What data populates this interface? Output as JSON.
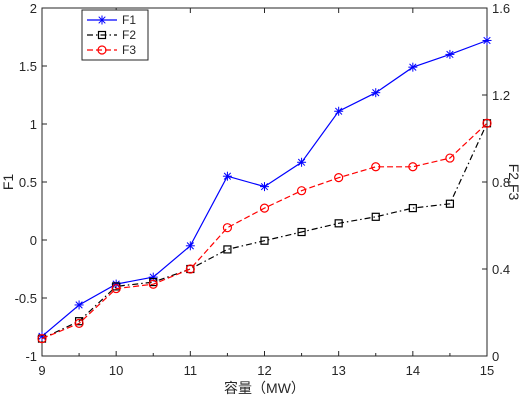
{
  "chart_data": {
    "type": "line",
    "xlabel": "容量（MW）",
    "ylabel_left": "F1",
    "ylabel_right": "F2,F3",
    "x": [
      9,
      9.5,
      10,
      10.5,
      11,
      11.5,
      12,
      12.5,
      13,
      13.5,
      14,
      14.5,
      15
    ],
    "xlim": [
      9,
      15
    ],
    "ylim_left": [
      -1,
      2
    ],
    "ylim_right": [
      0,
      1.6
    ],
    "xticks": [
      "9",
      "10",
      "11",
      "12",
      "13",
      "14",
      "15"
    ],
    "yticks_left": [
      "-1",
      "-0.5",
      "0",
      "0.5",
      "1",
      "1.5",
      "2"
    ],
    "yticks_right": [
      "0",
      "0.4",
      "0.8",
      "1.2",
      "1.6"
    ],
    "grid": false,
    "legend_position": "top-left",
    "series": [
      {
        "name": "F1",
        "axis": "left",
        "color": "#0000ff",
        "line_style": "solid",
        "marker": "asterisk",
        "values": [
          -0.83,
          -0.56,
          -0.38,
          -0.32,
          -0.05,
          0.55,
          0.46,
          0.67,
          1.11,
          1.27,
          1.49,
          1.6,
          1.72
        ]
      },
      {
        "name": "F2",
        "axis": "right",
        "color": "#000000",
        "line_style": "dashdot",
        "marker": "square",
        "values": [
          0.08,
          0.16,
          0.32,
          0.34,
          0.4,
          0.49,
          0.53,
          0.57,
          0.61,
          0.64,
          0.68,
          0.7,
          1.07
        ]
      },
      {
        "name": "F3",
        "axis": "right",
        "color": "#ff0000",
        "line_style": "dashed",
        "marker": "circle",
        "values": [
          0.08,
          0.15,
          0.31,
          0.33,
          0.4,
          0.59,
          0.68,
          0.76,
          0.82,
          0.87,
          0.87,
          0.91,
          1.07
        ]
      }
    ]
  }
}
